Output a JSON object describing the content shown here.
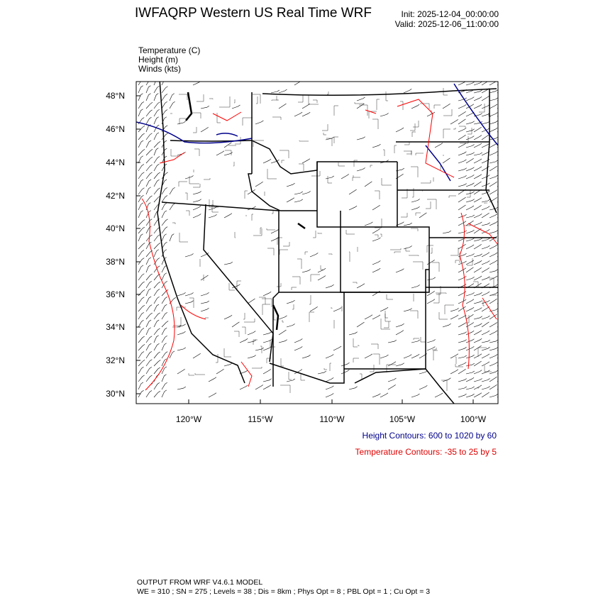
{
  "header": {
    "title": "IWFAQRP Western US Real Time WRF",
    "init": "Init: 2025-12-04_00:00:00",
    "valid": "Valid: 2025-12-06_11:00:00"
  },
  "fields": [
    "Temperature   (C)",
    "Height   (m)",
    "Winds   (kts)"
  ],
  "map": {
    "lat_labels": [
      "48°N",
      "46°N",
      "44°N",
      "42°N",
      "40°N",
      "38°N",
      "36°N",
      "34°N",
      "32°N",
      "30°N"
    ],
    "lon_labels": [
      "120°W",
      "115°W",
      "110°W",
      "105°W",
      "100°W"
    ],
    "height_color": "#00008b",
    "temperature_color": "#ff0000"
  },
  "legend": {
    "height_contours": "Height Contours: 600 to 1020 by 60",
    "temperature_contours": "Temperature Contours: -35 to 25 by 5"
  },
  "footer": {
    "line1": "OUTPUT FROM WRF V4.6.1 MODEL",
    "line2": "WE = 310 ; SN = 275 ; Levels = 38 ; Dis = 8km ; Phys Opt = 8 ; PBL Opt = 1 ; Cu Opt = 3"
  }
}
